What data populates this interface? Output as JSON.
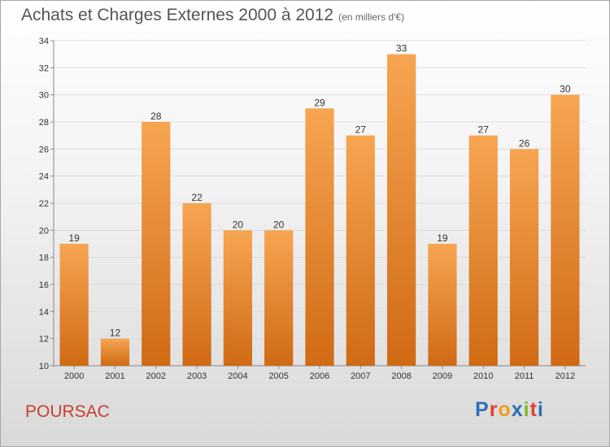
{
  "header": {
    "title": "Achats et Charges Externes 2000 à 2012",
    "subtitle": "(en milliers d'€)"
  },
  "footer": {
    "commune": "POURSAC",
    "logo_letters": [
      "P",
      "r",
      "o",
      "x",
      "i",
      "t",
      "i"
    ],
    "logo_colors": [
      "#2d6fb8",
      "#e0412f",
      "#f29d1b",
      "#2d6fb8",
      "#7cb82f",
      "#e0412f",
      "#2d6fb8"
    ]
  },
  "chart_data": {
    "type": "bar",
    "title": "Achats et Charges Externes 2000 à 2012",
    "subtitle": "(en milliers d'€)",
    "categories": [
      "2000",
      "2001",
      "2002",
      "2003",
      "2004",
      "2005",
      "2006",
      "2007",
      "2008",
      "2009",
      "2010",
      "2011",
      "2012"
    ],
    "values": [
      19,
      12,
      28,
      22,
      20,
      20,
      29,
      27,
      33,
      19,
      27,
      26,
      30
    ],
    "ylim": [
      10,
      34
    ],
    "yticks": [
      10,
      12,
      14,
      16,
      18,
      20,
      22,
      24,
      26,
      28,
      30,
      32,
      34
    ],
    "grid": true,
    "bar_color_top": "#f7a552",
    "bar_color_bottom": "#d06a13"
  }
}
